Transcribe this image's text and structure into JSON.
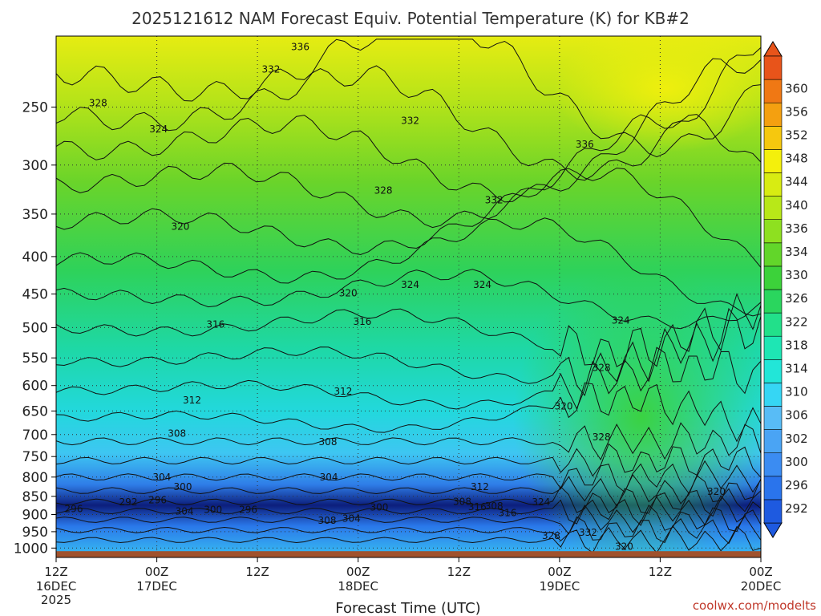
{
  "chart_data": {
    "type": "heatmap",
    "title": "2025121612 NAM Forecast Equiv. Potential Temperature (K) for KB#2",
    "xlabel": "Forecast Time (UTC)",
    "ylabel": "",
    "y_axis": {
      "scale": "pressure",
      "inverted": true,
      "range": [
        1030,
        200
      ],
      "ticks": [
        250,
        300,
        350,
        400,
        450,
        500,
        550,
        600,
        650,
        700,
        750,
        800,
        850,
        900,
        950,
        1000
      ]
    },
    "x_axis": {
      "range_hours": [
        0,
        84
      ],
      "ticks": [
        {
          "hour": 0,
          "line1": "12Z",
          "line2": "16DEC",
          "line3": "2025"
        },
        {
          "hour": 12,
          "line1": "00Z",
          "line2": "17DEC",
          "line3": ""
        },
        {
          "hour": 24,
          "line1": "12Z",
          "line2": "",
          "line3": ""
        },
        {
          "hour": 36,
          "line1": "00Z",
          "line2": "18DEC",
          "line3": ""
        },
        {
          "hour": 48,
          "line1": "12Z",
          "line2": "",
          "line3": ""
        },
        {
          "hour": 60,
          "line1": "00Z",
          "line2": "19DEC",
          "line3": ""
        },
        {
          "hour": 72,
          "line1": "12Z",
          "line2": "",
          "line3": ""
        },
        {
          "hour": 84,
          "line1": "00Z",
          "line2": "20DEC",
          "line3": ""
        }
      ]
    },
    "grid": true,
    "legend": "right-colorbar",
    "colorbar": {
      "labels": [
        292,
        296,
        300,
        302,
        306,
        310,
        314,
        318,
        322,
        326,
        330,
        334,
        336,
        340,
        344,
        348,
        352,
        356,
        360
      ],
      "colors": [
        "#1e5ae0",
        "#2a74ec",
        "#3b8cf2",
        "#4aa4f4",
        "#58bcf6",
        "#36d6f4",
        "#22e6d8",
        "#1ee6b4",
        "#22e08a",
        "#2ad65e",
        "#3cd23a",
        "#62d62a",
        "#8ee020",
        "#b8e818",
        "#d8ec12",
        "#f4f00c",
        "#f6c80e",
        "#f4a010",
        "#f07814",
        "#e8541a"
      ]
    },
    "contour_labels": [
      {
        "text": "336",
        "h": 29.1,
        "p": 207
      },
      {
        "text": "332",
        "h": 25.6,
        "p": 222
      },
      {
        "text": "328",
        "h": 5.0,
        "p": 247
      },
      {
        "text": "332",
        "h": 42.2,
        "p": 261
      },
      {
        "text": "324",
        "h": 12.2,
        "p": 268
      },
      {
        "text": "336",
        "h": 63.0,
        "p": 281
      },
      {
        "text": "328",
        "h": 39.0,
        "p": 325
      },
      {
        "text": "332",
        "h": 52.2,
        "p": 335
      },
      {
        "text": "320",
        "h": 14.8,
        "p": 364
      },
      {
        "text": "320",
        "h": 34.8,
        "p": 449
      },
      {
        "text": "324",
        "h": 42.2,
        "p": 437
      },
      {
        "text": "324",
        "h": 50.8,
        "p": 437
      },
      {
        "text": "316",
        "h": 19.0,
        "p": 495
      },
      {
        "text": "316",
        "h": 36.5,
        "p": 491
      },
      {
        "text": "324",
        "h": 67.3,
        "p": 489
      },
      {
        "text": "328",
        "h": 65.0,
        "p": 567
      },
      {
        "text": "312",
        "h": 16.2,
        "p": 628
      },
      {
        "text": "312",
        "h": 34.2,
        "p": 611
      },
      {
        "text": "320",
        "h": 60.5,
        "p": 640
      },
      {
        "text": "308",
        "h": 14.4,
        "p": 698
      },
      {
        "text": "308",
        "h": 32.4,
        "p": 716
      },
      {
        "text": "328",
        "h": 65.0,
        "p": 706
      },
      {
        "text": "304",
        "h": 12.6,
        "p": 800
      },
      {
        "text": "300",
        "h": 15.1,
        "p": 825
      },
      {
        "text": "304",
        "h": 32.5,
        "p": 800
      },
      {
        "text": "296",
        "h": 12.1,
        "p": 860
      },
      {
        "text": "312",
        "h": 50.5,
        "p": 825
      },
      {
        "text": "292",
        "h": 8.6,
        "p": 866
      },
      {
        "text": "296",
        "h": 2.1,
        "p": 884
      },
      {
        "text": "304",
        "h": 15.3,
        "p": 891
      },
      {
        "text": "300",
        "h": 18.7,
        "p": 887
      },
      {
        "text": "296",
        "h": 22.9,
        "p": 887
      },
      {
        "text": "300",
        "h": 38.5,
        "p": 880
      },
      {
        "text": "308",
        "h": 48.4,
        "p": 864
      },
      {
        "text": "316",
        "h": 50.2,
        "p": 879
      },
      {
        "text": "316",
        "h": 53.8,
        "p": 895
      },
      {
        "text": "308",
        "h": 52.2,
        "p": 876
      },
      {
        "text": "324",
        "h": 57.8,
        "p": 866
      },
      {
        "text": "304",
        "h": 35.2,
        "p": 911
      },
      {
        "text": "308",
        "h": 32.3,
        "p": 917
      },
      {
        "text": "328",
        "h": 59.0,
        "p": 962
      },
      {
        "text": "332",
        "h": 63.4,
        "p": 953
      },
      {
        "text": "320",
        "h": 67.7,
        "p": 995
      },
      {
        "text": "320",
        "h": 78.7,
        "p": 838
      }
    ],
    "surface": {
      "color": "#a0522d",
      "pressure_top": 1010
    }
  },
  "credit": "coolwx.com/modelts"
}
